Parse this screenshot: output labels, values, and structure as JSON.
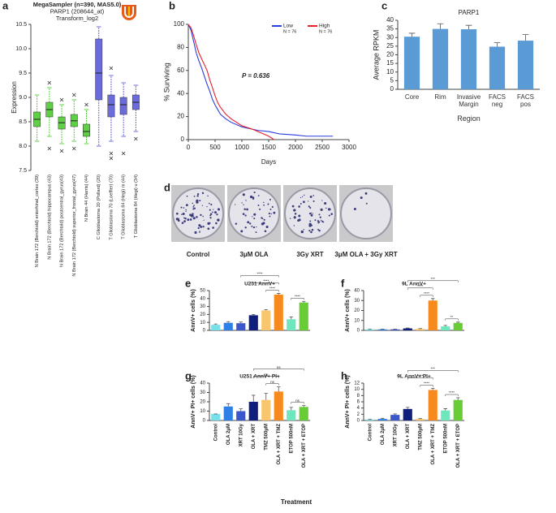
{
  "shared_xlabel": "Treatment",
  "image_panel": {
    "panel": "d",
    "labels": [
      "Control",
      "3μM OLA",
      "3Gy XRT",
      "3μM OLA + 3Gy XRT"
    ]
  },
  "chart_data": [
    {
      "type": "box",
      "panel": "a",
      "title": [
        "MegaSampler (n=390, MAS5.0)",
        "PARP1 (208644_at)",
        "Transform_log2"
      ],
      "ylabel": "Expression",
      "categories": [
        "N Brain 172 (Berchtold) entorhinal_cortex (39)",
        "N Brain 172 (Berchtold) hippocampus (43)",
        "N Brain 172 (Berchtold) postcentral_gyrus(43)",
        "N Brain 172 (Berchtold) superior_frontal_gyrus(47)",
        "N Brain 44 (Harris) (44)",
        "C Glioblastoma 20 (Pollard) (20)",
        "T Glioblastoma 70 (Loeffler) (70)",
        "T Glioblastoma 84 (Hegi) m (44)",
        "T Glioblastoma 84 (Hegi) u (34)"
      ],
      "boxes": [
        {
          "whislo": 8.1,
          "q1": 8.4,
          "med": 8.55,
          "q3": 8.7,
          "whishi": 9.05,
          "fliers": []
        },
        {
          "whislo": 8.2,
          "q1": 8.6,
          "med": 8.75,
          "q3": 8.9,
          "whishi": 9.2,
          "fliers": [
            9.3,
            7.95
          ]
        },
        {
          "whislo": 8.05,
          "q1": 8.35,
          "med": 8.48,
          "q3": 8.6,
          "whishi": 8.85,
          "fliers": [
            8.95,
            7.9
          ]
        },
        {
          "whislo": 8.1,
          "q1": 8.4,
          "med": 8.52,
          "q3": 8.65,
          "whishi": 8.95,
          "fliers": [
            9.05,
            7.95
          ]
        },
        {
          "whislo": 8.05,
          "q1": 8.2,
          "med": 8.3,
          "q3": 8.45,
          "whishi": 8.75,
          "fliers": [
            8.85
          ]
        },
        {
          "whislo": 8.0,
          "q1": 8.95,
          "med": 9.5,
          "q3": 10.2,
          "whishi": 10.45,
          "fliers": []
        },
        {
          "whislo": 8.1,
          "q1": 8.6,
          "med": 8.85,
          "q3": 9.05,
          "whishi": 9.45,
          "fliers": [
            9.6,
            7.85,
            7.75
          ]
        },
        {
          "whislo": 8.2,
          "q1": 8.65,
          "med": 8.85,
          "q3": 9.0,
          "whishi": 9.3,
          "fliers": [
            7.85
          ]
        },
        {
          "whislo": 8.3,
          "q1": 8.75,
          "med": 8.9,
          "q3": 9.05,
          "whishi": 9.25,
          "fliers": [
            8.15
          ]
        }
      ],
      "colors": [
        "#5fcf45",
        "#5fcf45",
        "#5fcf45",
        "#5fcf45",
        "#5fcf45",
        "#6b6bdc",
        "#6b6bdc",
        "#6b6bdc",
        "#6b6bdc"
      ],
      "ylim": [
        7.5,
        10.5
      ],
      "yticks": [
        7.5,
        {
          "value": 8,
          "label": "8.0"
        },
        8.5,
        {
          "value": 9,
          "label": "9.0"
        },
        9.5,
        {
          "value": 10,
          "label": "10.0"
        },
        10.5
      ]
    },
    {
      "type": "line",
      "panel": "b",
      "step": true,
      "xlabel": "Days",
      "ylabel": "% Surviving",
      "annotation": "P = 0.636",
      "legend": "upper right",
      "series": [
        {
          "name": "Low",
          "note": "N = 76",
          "color": "#2b3de0",
          "x": [
            0,
            50,
            100,
            150,
            200,
            250,
            300,
            350,
            400,
            450,
            500,
            550,
            600,
            700,
            800,
            900,
            1000,
            1100,
            1300,
            1500,
            1700,
            2000,
            2200,
            2700
          ],
          "values": [
            100,
            95,
            85,
            75,
            68,
            62,
            55,
            48,
            42,
            35,
            30,
            26,
            22,
            18,
            15,
            13,
            11,
            10,
            8,
            7,
            5,
            4,
            3,
            3
          ]
        },
        {
          "name": "High",
          "note": "N = 76",
          "color": "#e8202a",
          "x": [
            0,
            50,
            100,
            150,
            200,
            250,
            300,
            350,
            400,
            450,
            500,
            550,
            600,
            700,
            800,
            900,
            1000,
            1200,
            1400,
            1500,
            1600
          ],
          "values": [
            100,
            97,
            90,
            82,
            75,
            70,
            65,
            60,
            52,
            45,
            38,
            32,
            28,
            22,
            18,
            15,
            12,
            9,
            5,
            3,
            0
          ]
        }
      ],
      "xlim": [
        0,
        3000
      ],
      "xticks": [
        0,
        500,
        1000,
        1500,
        2000,
        2500,
        3000
      ],
      "ylim": [
        0,
        100
      ],
      "yticks": [
        0,
        20,
        40,
        60,
        80,
        100
      ]
    },
    {
      "type": "bar",
      "panel": "c",
      "title": "PARP1",
      "ylabel": "Average RPKM",
      "xlabel": "Region",
      "categories": [
        "Core",
        "Rim",
        "Invasive Margin",
        "FACS neg",
        "FACS pos"
      ],
      "values": [
        30.5,
        35,
        34.8,
        24.7,
        28.2
      ],
      "errors": [
        2,
        3,
        2.3,
        2.3,
        3.5
      ],
      "color": "#5b9bd5",
      "ylim": [
        0,
        40
      ],
      "yticks": [
        0,
        5,
        10,
        15,
        20,
        25,
        30,
        35,
        40
      ]
    },
    {
      "type": "bar",
      "panel": "e",
      "title": "U251 AnnV+",
      "ylabel": "AnnV+ cells (%)",
      "values": [
        7,
        9.5,
        9,
        19,
        25,
        45,
        14,
        35
      ],
      "errors": [
        1,
        1.5,
        1.5,
        1,
        1,
        1.5,
        3,
        1.5
      ],
      "colors": [
        "#79dfe9",
        "#2f80e6",
        "#3a57cc",
        "#101f7c",
        "#f9c56d",
        "#f68a1f",
        "#6fe7bd",
        "#68cc34"
      ],
      "brackets": [
        {
          "between": [
            4,
            5
          ],
          "label": "****"
        },
        {
          "between": [
            3,
            5
          ],
          "label": "****"
        },
        {
          "between": [
            2,
            5
          ],
          "label": "****"
        },
        {
          "between": [
            6,
            7
          ],
          "label": "****"
        }
      ],
      "ylim": [
        0,
        50
      ],
      "yticks": [
        0,
        10,
        20,
        30,
        40,
        50
      ]
    },
    {
      "type": "bar",
      "panel": "f",
      "title": "9L AnnV+",
      "ylabel": "AnnV+ cells (%)",
      "values": [
        1,
        1,
        1,
        2,
        1.5,
        30,
        4,
        7.5
      ],
      "errors": [
        0.3,
        0.3,
        0.3,
        0.3,
        0.3,
        2,
        1,
        0.8
      ],
      "colors": [
        "#79dfe9",
        "#2f80e6",
        "#3a57cc",
        "#101f7c",
        "#f9c56d",
        "#f68a1f",
        "#6fe7bd",
        "#68cc34"
      ],
      "brackets": [
        {
          "between": [
            4,
            5
          ],
          "label": "****"
        },
        {
          "between": [
            6,
            7
          ],
          "label": "**"
        },
        {
          "between": [
            3,
            5
          ],
          "label": "****"
        },
        {
          "between": [
            3,
            7
          ],
          "label": "***"
        }
      ],
      "ylim": [
        0,
        40
      ],
      "yticks": [
        0,
        10,
        20,
        30,
        40
      ]
    },
    {
      "type": "bar",
      "panel": "g",
      "title": "U251 AnnV+ PI+",
      "ylabel": "AnnV+ PI+ cells (%)",
      "categories": [
        "Control",
        "OLA 2μM",
        "XRT 10Gy",
        "OLA + XRT",
        "TMZ 500μM",
        "OLA + XRT + TMZ",
        "ETOP 500nM",
        "OLA + XRT + ETOP"
      ],
      "values": [
        7,
        15,
        10,
        20,
        22,
        31,
        11,
        14.5
      ],
      "errors": [
        0,
        3,
        2.5,
        7,
        7,
        5,
        3,
        1.5
      ],
      "colors": [
        "#79dfe9",
        "#2f80e6",
        "#3a57cc",
        "#101f7c",
        "#f9c56d",
        "#f68a1f",
        "#6fe7bd",
        "#68cc34"
      ],
      "brackets": [
        {
          "between": [
            4,
            5
          ],
          "label": "ns"
        },
        {
          "between": [
            6,
            7
          ],
          "label": "ns"
        },
        {
          "between": [
            3,
            5
          ],
          "label": "ns"
        },
        {
          "between": [
            3,
            7
          ],
          "label": "ns"
        }
      ],
      "ylim": [
        0,
        40
      ],
      "yticks": [
        0,
        10,
        20,
        30,
        40
      ]
    },
    {
      "type": "bar",
      "panel": "h",
      "title": "9L AnnV+ PI+",
      "ylabel": "AnnV+ PI+ cells (%)",
      "categories": [
        "Control",
        "OLA 2μM",
        "XRT 10Gy",
        "OLA + XRT",
        "TMZ 500μM",
        "OLA + XRT + TMZ",
        "ETOP 500nM",
        "OLA + XRT + ETOP"
      ],
      "values": [
        0.3,
        0.5,
        1.8,
        3.7,
        0.5,
        9.8,
        3.2,
        6.6
      ],
      "errors": [
        0.1,
        0.2,
        0.3,
        0.5,
        0.1,
        0.5,
        0.6,
        0.7
      ],
      "colors": [
        "#79dfe9",
        "#2f80e6",
        "#3a57cc",
        "#101f7c",
        "#f9c56d",
        "#f68a1f",
        "#6fe7bd",
        "#68cc34"
      ],
      "brackets": [
        {
          "between": [
            4,
            5
          ],
          "label": "****"
        },
        {
          "between": [
            6,
            7
          ],
          "label": "****"
        },
        {
          "between": [
            3,
            5
          ],
          "label": "****"
        },
        {
          "between": [
            3,
            7
          ],
          "label": "***"
        }
      ],
      "ylim": [
        0,
        12
      ],
      "yticks": [
        0,
        2,
        4,
        6,
        8,
        10,
        12
      ]
    }
  ]
}
